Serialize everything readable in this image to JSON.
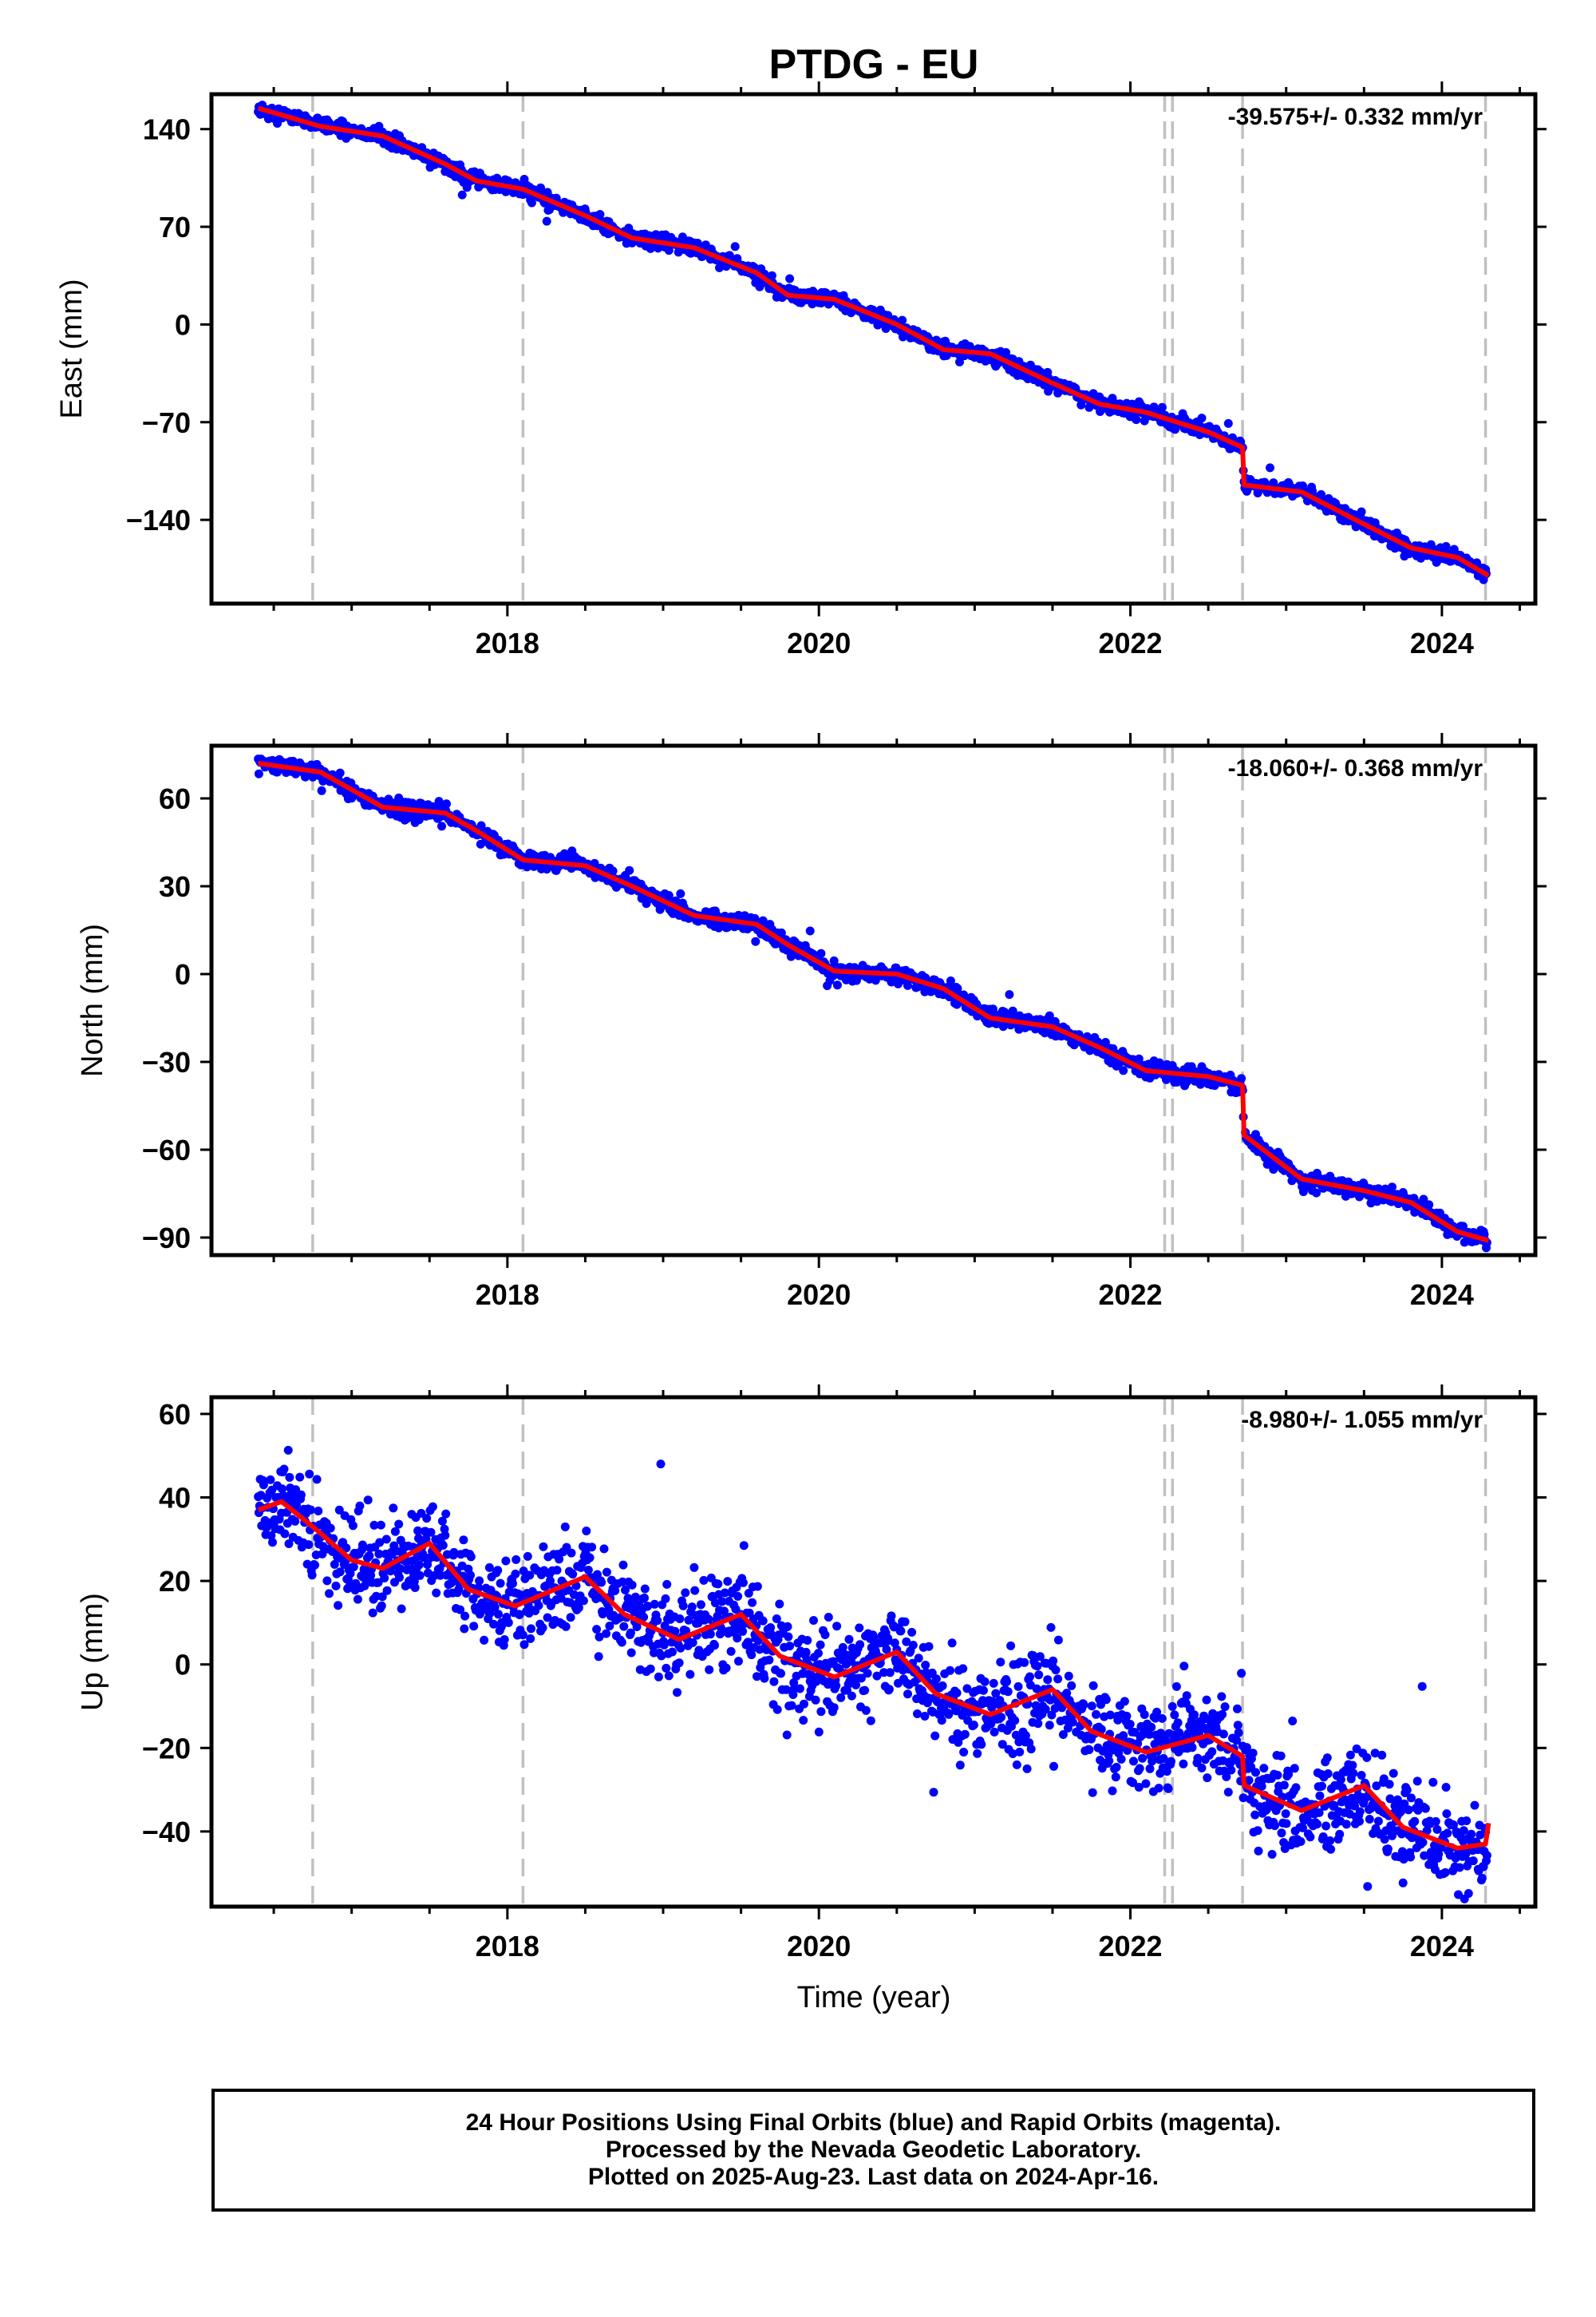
{
  "title": "PTDG - EU",
  "xlabel": "Time (year)",
  "footer": {
    "line1": "24 Hour Positions Using Final Orbits (blue) and Rapid Orbits (magenta).",
    "line2": "Processed by the Nevada Geodetic Laboratory.",
    "line3": "Plotted on 2025-Aug-23. Last data on 2024-Apr-16."
  },
  "colors": {
    "data": "#0000ff",
    "model": "#ff0000",
    "event": "#c0c0c0",
    "axis": "#000000"
  },
  "chart_data": [
    {
      "type": "scatter",
      "component": "east",
      "ylabel": "East (mm)",
      "rate_text": "-39.575+/- 0.332 mm/yr",
      "xlim": [
        2016.1,
        2024.6
      ],
      "ylim": [
        -200,
        165
      ],
      "yticks": [
        140,
        70,
        0,
        -70,
        -140
      ],
      "ytick_labels": [
        "140",
        "70",
        "0",
        "−70",
        "−140"
      ],
      "xticks": [
        2018,
        2020,
        2022,
        2024
      ],
      "xtick_labels": [
        "2018",
        "2020",
        "2022",
        "2024"
      ],
      "event_lines": [
        2016.75,
        2018.1,
        2022.22,
        2022.27,
        2022.72,
        2024.28
      ],
      "offsets": [
        {
          "x": 2022.72,
          "delta": -20
        }
      ],
      "rate": -39.575,
      "y0": 20,
      "t0": 2020.0,
      "seasonal_amp": 3,
      "noise": 2.5,
      "model": [
        [
          2016.4,
          155
        ],
        [
          2016.8,
          142
        ],
        [
          2017.2,
          135
        ],
        [
          2017.6,
          115
        ],
        [
          2017.8,
          103
        ],
        [
          2018.1,
          97
        ],
        [
          2018.5,
          78
        ],
        [
          2018.8,
          62
        ],
        [
          2019.2,
          55
        ],
        [
          2019.6,
          37
        ],
        [
          2019.8,
          21
        ],
        [
          2020.1,
          18
        ],
        [
          2020.5,
          0
        ],
        [
          2020.8,
          -18
        ],
        [
          2021.1,
          -21
        ],
        [
          2021.5,
          -42
        ],
        [
          2021.8,
          -57
        ],
        [
          2022.1,
          -63
        ],
        [
          2022.5,
          -77
        ],
        [
          2022.72,
          -88
        ],
        [
          2022.73,
          -115
        ],
        [
          2023.1,
          -120
        ],
        [
          2023.5,
          -143
        ],
        [
          2023.8,
          -160
        ],
        [
          2024.1,
          -167
        ],
        [
          2024.3,
          -180
        ]
      ]
    },
    {
      "type": "scatter",
      "component": "north",
      "ylabel": "North (mm)",
      "rate_text": "-18.060+/- 0.368 mm/yr",
      "xlim": [
        2016.1,
        2024.6
      ],
      "ylim": [
        -96,
        78
      ],
      "yticks": [
        60,
        30,
        0,
        -30,
        -60,
        -90
      ],
      "ytick_labels": [
        "60",
        "30",
        "0",
        "−30",
        "−60",
        "−90"
      ],
      "xticks": [
        2018,
        2020,
        2022,
        2024
      ],
      "xtick_labels": [
        "2018",
        "2020",
        "2022",
        "2024"
      ],
      "event_lines": [
        2016.75,
        2018.1,
        2022.22,
        2022.27,
        2022.72,
        2024.28
      ],
      "offsets": [
        {
          "x": 2022.72,
          "delta": -18
        }
      ],
      "rate": -18.06,
      "y0": 0,
      "t0": 2020.0,
      "seasonal_amp": 2,
      "noise": 1.4,
      "model": [
        [
          2016.4,
          72
        ],
        [
          2016.8,
          69
        ],
        [
          2017.2,
          57
        ],
        [
          2017.6,
          55
        ],
        [
          2017.8,
          49
        ],
        [
          2018.1,
          39
        ],
        [
          2018.5,
          37
        ],
        [
          2018.8,
          30
        ],
        [
          2019.2,
          20
        ],
        [
          2019.6,
          17
        ],
        [
          2019.8,
          10
        ],
        [
          2020.1,
          1
        ],
        [
          2020.5,
          0
        ],
        [
          2020.8,
          -5
        ],
        [
          2021.1,
          -15
        ],
        [
          2021.5,
          -18
        ],
        [
          2021.8,
          -25
        ],
        [
          2022.1,
          -33
        ],
        [
          2022.5,
          -35
        ],
        [
          2022.72,
          -38
        ],
        [
          2022.73,
          -55
        ],
        [
          2023.1,
          -70
        ],
        [
          2023.5,
          -74
        ],
        [
          2023.8,
          -78
        ],
        [
          2024.1,
          -88
        ],
        [
          2024.3,
          -91
        ]
      ]
    },
    {
      "type": "scatter",
      "component": "up",
      "ylabel": "Up (mm)",
      "rate_text": "-8.980+/- 1.055 mm/yr",
      "xlim": [
        2016.1,
        2024.6
      ],
      "ylim": [
        -58,
        64
      ],
      "yticks": [
        60,
        40,
        20,
        0,
        -20,
        -40
      ],
      "ytick_labels": [
        "60",
        "40",
        "20",
        "0",
        "−20",
        "−40"
      ],
      "xticks": [
        2018,
        2020,
        2022,
        2024
      ],
      "xtick_labels": [
        "2018",
        "2020",
        "2022",
        "2024"
      ],
      "event_lines": [
        2016.75,
        2018.1,
        2022.22,
        2022.27,
        2022.72,
        2024.28
      ],
      "offsets": [
        {
          "x": 2022.72,
          "delta": -7
        }
      ],
      "rate": -8.98,
      "y0": -3,
      "t0": 2020.0,
      "seasonal_amp": 8,
      "noise": 5.5,
      "model": [
        [
          2016.4,
          37
        ],
        [
          2016.55,
          39
        ],
        [
          2016.75,
          33
        ],
        [
          2017.0,
          25
        ],
        [
          2017.2,
          23
        ],
        [
          2017.5,
          29
        ],
        [
          2017.75,
          18
        ],
        [
          2018.05,
          14
        ],
        [
          2018.5,
          21
        ],
        [
          2018.75,
          12
        ],
        [
          2019.1,
          6
        ],
        [
          2019.5,
          12
        ],
        [
          2019.75,
          2
        ],
        [
          2020.1,
          -3
        ],
        [
          2020.5,
          3
        ],
        [
          2020.75,
          -7
        ],
        [
          2021.1,
          -12
        ],
        [
          2021.5,
          -6
        ],
        [
          2021.75,
          -16
        ],
        [
          2022.1,
          -21
        ],
        [
          2022.5,
          -17
        ],
        [
          2022.72,
          -22
        ],
        [
          2022.73,
          -29
        ],
        [
          2023.1,
          -35
        ],
        [
          2023.5,
          -29
        ],
        [
          2023.75,
          -39
        ],
        [
          2024.1,
          -44
        ],
        [
          2024.28,
          -43
        ],
        [
          2024.3,
          -38
        ]
      ]
    }
  ]
}
